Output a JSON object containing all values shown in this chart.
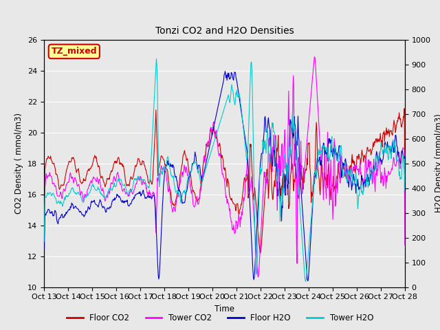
{
  "title": "Tonzi CO2 and H2O Densities",
  "xlabel": "Time",
  "ylabel_left": "CO2 Density ( mmol/m3)",
  "ylabel_right": "H2O Density (mmol/m3)",
  "ylim_left": [
    10,
    26
  ],
  "ylim_right": [
    0,
    1000
  ],
  "yticks_left": [
    10,
    12,
    14,
    16,
    18,
    20,
    22,
    24,
    26
  ],
  "yticks_right": [
    0,
    100,
    200,
    300,
    400,
    500,
    600,
    700,
    800,
    900,
    1000
  ],
  "xtick_labels": [
    "Oct 13",
    "Oct 14",
    "Oct 15",
    "Oct 16",
    "Oct 17",
    "Oct 18",
    "Oct 19",
    "Oct 20",
    "Oct 21",
    "Oct 22",
    "Oct 23",
    "Oct 24",
    "Oct 25",
    "Oct 26",
    "Oct 27",
    "Oct 28"
  ],
  "annotation_text": "TZ_mixed",
  "annotation_color": "#cc0000",
  "annotation_bg": "#ffff99",
  "annotation_border": "#cc0000",
  "colors": {
    "floor_co2": "#cc0000",
    "tower_co2": "#ff00ff",
    "floor_h2o": "#0000cc",
    "tower_h2o": "#00cccc"
  },
  "legend_labels": [
    "Floor CO2",
    "Tower CO2",
    "Floor H2O",
    "Tower H2O"
  ],
  "background_color": "#e8e8e8",
  "plot_bg": "#e8e8e8",
  "figsize": [
    6.4,
    4.8
  ],
  "dpi": 100
}
